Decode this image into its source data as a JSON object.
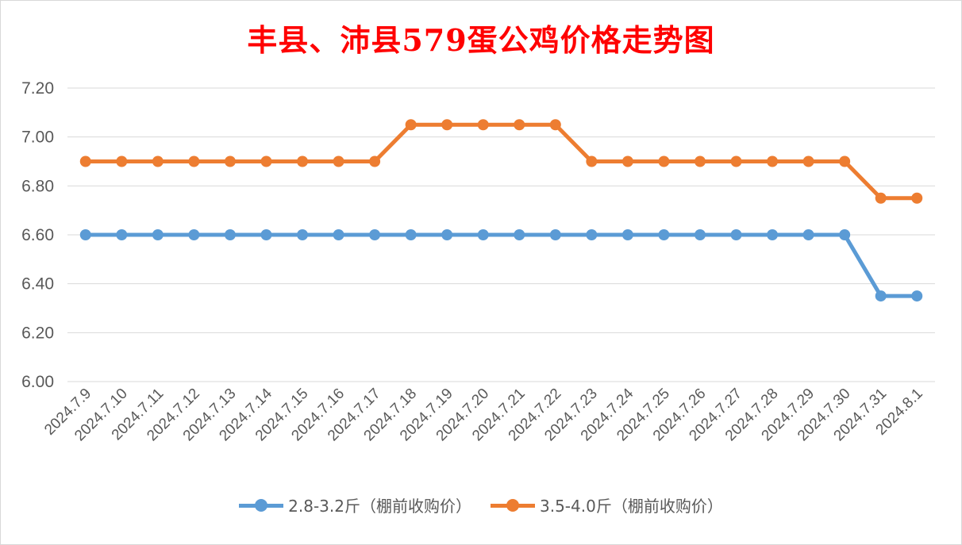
{
  "chart_data": {
    "type": "line",
    "title": "丰县、沛县579蛋公鸡价格走势图",
    "xlabel": "",
    "ylabel": "",
    "ylim": [
      6.0,
      7.2
    ],
    "yticks": [
      "6.00",
      "6.20",
      "6.40",
      "6.60",
      "6.80",
      "7.00",
      "7.20"
    ],
    "grid": true,
    "legend_position": "bottom",
    "categories": [
      "2024.7.9",
      "2024.7.10",
      "2024.7.11",
      "2024.7.12",
      "2024.7.13",
      "2024.7.14",
      "2024.7.15",
      "2024.7.16",
      "2024.7.17",
      "2024.7.18",
      "2024.7.19",
      "2024.7.20",
      "2024.7.21",
      "2024.7.22",
      "2024.7.23",
      "2024.7.24",
      "2024.7.25",
      "2024.7.26",
      "2024.7.27",
      "2024.7.28",
      "2024.7.29",
      "2024.7.30",
      "2024.7.31",
      "2024.8.1"
    ],
    "series": [
      {
        "name": "2.8-3.2斤（棚前收购价）",
        "color": "#5b9bd5",
        "values": [
          6.6,
          6.6,
          6.6,
          6.6,
          6.6,
          6.6,
          6.6,
          6.6,
          6.6,
          6.6,
          6.6,
          6.6,
          6.6,
          6.6,
          6.6,
          6.6,
          6.6,
          6.6,
          6.6,
          6.6,
          6.6,
          6.6,
          6.35,
          6.35
        ]
      },
      {
        "name": "3.5-4.0斤（棚前收购价）",
        "color": "#ed7d31",
        "values": [
          6.9,
          6.9,
          6.9,
          6.9,
          6.9,
          6.9,
          6.9,
          6.9,
          6.9,
          7.05,
          7.05,
          7.05,
          7.05,
          7.05,
          6.9,
          6.9,
          6.9,
          6.9,
          6.9,
          6.9,
          6.9,
          6.9,
          6.75,
          6.75
        ]
      }
    ]
  }
}
